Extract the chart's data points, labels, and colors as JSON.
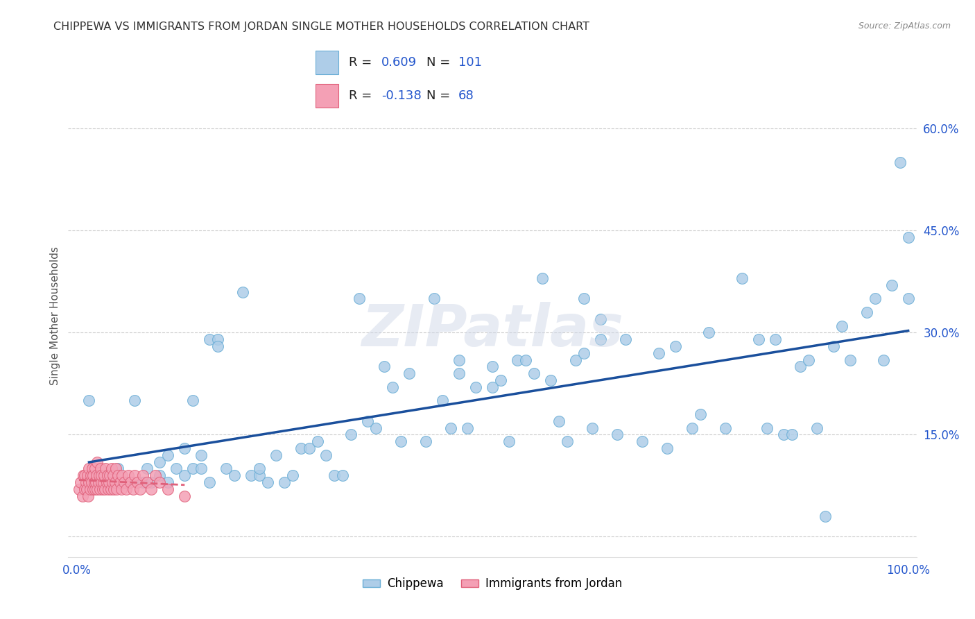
{
  "title": "CHIPPEWA VS IMMIGRANTS FROM JORDAN SINGLE MOTHER HOUSEHOLDS CORRELATION CHART",
  "source": "Source: ZipAtlas.com",
  "ylabel_label": "Single Mother Households",
  "xlim": [
    -0.01,
    1.01
  ],
  "ylim": [
    -0.03,
    0.68
  ],
  "xticks": [
    0.0,
    0.25,
    0.5,
    0.75,
    1.0
  ],
  "xtick_labels": [
    "0.0%",
    "",
    "",
    "",
    "100.0%"
  ],
  "yticks": [
    0.0,
    0.15,
    0.3,
    0.45,
    0.6
  ],
  "ytick_labels": [
    "",
    "15.0%",
    "30.0%",
    "45.0%",
    "60.0%"
  ],
  "grid_color": "#cccccc",
  "background_color": "#ffffff",
  "chippewa_color": "#aecde8",
  "chippewa_edge_color": "#6aaed6",
  "jordan_color": "#f4a0b5",
  "jordan_edge_color": "#e0607a",
  "chippewa_line_color": "#1a4f9c",
  "jordan_line_color": "#e0607a",
  "legend_box_blue": "#aecde8",
  "legend_box_pink": "#f4a0b5",
  "R_chippewa": "0.609",
  "N_chippewa": "101",
  "R_jordan": "-0.138",
  "N_jordan": "68",
  "watermark": "ZIPatlas",
  "chippewa_scatter_x": [
    0.015,
    0.05,
    0.06,
    0.07,
    0.08,
    0.085,
    0.09,
    0.1,
    0.1,
    0.11,
    0.11,
    0.12,
    0.13,
    0.13,
    0.14,
    0.14,
    0.15,
    0.15,
    0.16,
    0.17,
    0.17,
    0.18,
    0.19,
    0.2,
    0.21,
    0.22,
    0.22,
    0.23,
    0.24,
    0.25,
    0.26,
    0.27,
    0.28,
    0.29,
    0.3,
    0.31,
    0.32,
    0.33,
    0.35,
    0.36,
    0.37,
    0.38,
    0.39,
    0.4,
    0.42,
    0.43,
    0.44,
    0.45,
    0.46,
    0.47,
    0.48,
    0.5,
    0.51,
    0.52,
    0.53,
    0.54,
    0.55,
    0.56,
    0.57,
    0.58,
    0.59,
    0.6,
    0.61,
    0.62,
    0.63,
    0.65,
    0.66,
    0.68,
    0.7,
    0.71,
    0.72,
    0.74,
    0.75,
    0.76,
    0.78,
    0.8,
    0.82,
    0.83,
    0.84,
    0.85,
    0.86,
    0.87,
    0.88,
    0.89,
    0.9,
    0.91,
    0.92,
    0.93,
    0.95,
    0.96,
    0.97,
    0.98,
    0.99,
    1.0,
    1.0,
    0.34,
    0.46,
    0.5,
    0.61,
    0.63,
    0.16
  ],
  "chippewa_scatter_y": [
    0.2,
    0.1,
    0.08,
    0.2,
    0.08,
    0.1,
    0.08,
    0.09,
    0.11,
    0.12,
    0.08,
    0.1,
    0.09,
    0.13,
    0.1,
    0.2,
    0.12,
    0.1,
    0.29,
    0.29,
    0.28,
    0.1,
    0.09,
    0.36,
    0.09,
    0.09,
    0.1,
    0.08,
    0.12,
    0.08,
    0.09,
    0.13,
    0.13,
    0.14,
    0.12,
    0.09,
    0.09,
    0.15,
    0.17,
    0.16,
    0.25,
    0.22,
    0.14,
    0.24,
    0.14,
    0.35,
    0.2,
    0.16,
    0.26,
    0.16,
    0.22,
    0.25,
    0.23,
    0.14,
    0.26,
    0.26,
    0.24,
    0.38,
    0.23,
    0.17,
    0.14,
    0.26,
    0.27,
    0.16,
    0.29,
    0.15,
    0.29,
    0.14,
    0.27,
    0.13,
    0.28,
    0.16,
    0.18,
    0.3,
    0.16,
    0.38,
    0.29,
    0.16,
    0.29,
    0.15,
    0.15,
    0.25,
    0.26,
    0.16,
    0.03,
    0.28,
    0.31,
    0.26,
    0.33,
    0.35,
    0.26,
    0.37,
    0.55,
    0.44,
    0.35,
    0.35,
    0.24,
    0.22,
    0.35,
    0.32,
    0.08
  ],
  "jordan_scatter_x": [
    0.003,
    0.005,
    0.007,
    0.008,
    0.01,
    0.01,
    0.011,
    0.012,
    0.013,
    0.014,
    0.015,
    0.015,
    0.016,
    0.017,
    0.018,
    0.019,
    0.02,
    0.02,
    0.021,
    0.022,
    0.022,
    0.023,
    0.024,
    0.025,
    0.025,
    0.026,
    0.027,
    0.028,
    0.029,
    0.03,
    0.03,
    0.031,
    0.032,
    0.033,
    0.034,
    0.035,
    0.036,
    0.037,
    0.038,
    0.039,
    0.04,
    0.041,
    0.042,
    0.043,
    0.044,
    0.045,
    0.046,
    0.047,
    0.048,
    0.05,
    0.052,
    0.054,
    0.055,
    0.057,
    0.06,
    0.062,
    0.065,
    0.068,
    0.07,
    0.073,
    0.076,
    0.08,
    0.085,
    0.09,
    0.095,
    0.1,
    0.11,
    0.13
  ],
  "jordan_scatter_y": [
    0.07,
    0.08,
    0.06,
    0.09,
    0.07,
    0.09,
    0.08,
    0.07,
    0.09,
    0.06,
    0.08,
    0.1,
    0.07,
    0.09,
    0.08,
    0.1,
    0.07,
    0.09,
    0.08,
    0.07,
    0.1,
    0.08,
    0.09,
    0.07,
    0.11,
    0.08,
    0.09,
    0.07,
    0.1,
    0.08,
    0.09,
    0.07,
    0.08,
    0.09,
    0.07,
    0.1,
    0.08,
    0.09,
    0.07,
    0.08,
    0.09,
    0.07,
    0.1,
    0.08,
    0.09,
    0.07,
    0.08,
    0.1,
    0.07,
    0.09,
    0.08,
    0.07,
    0.09,
    0.08,
    0.07,
    0.09,
    0.08,
    0.07,
    0.09,
    0.08,
    0.07,
    0.09,
    0.08,
    0.07,
    0.09,
    0.08,
    0.07,
    0.06
  ]
}
